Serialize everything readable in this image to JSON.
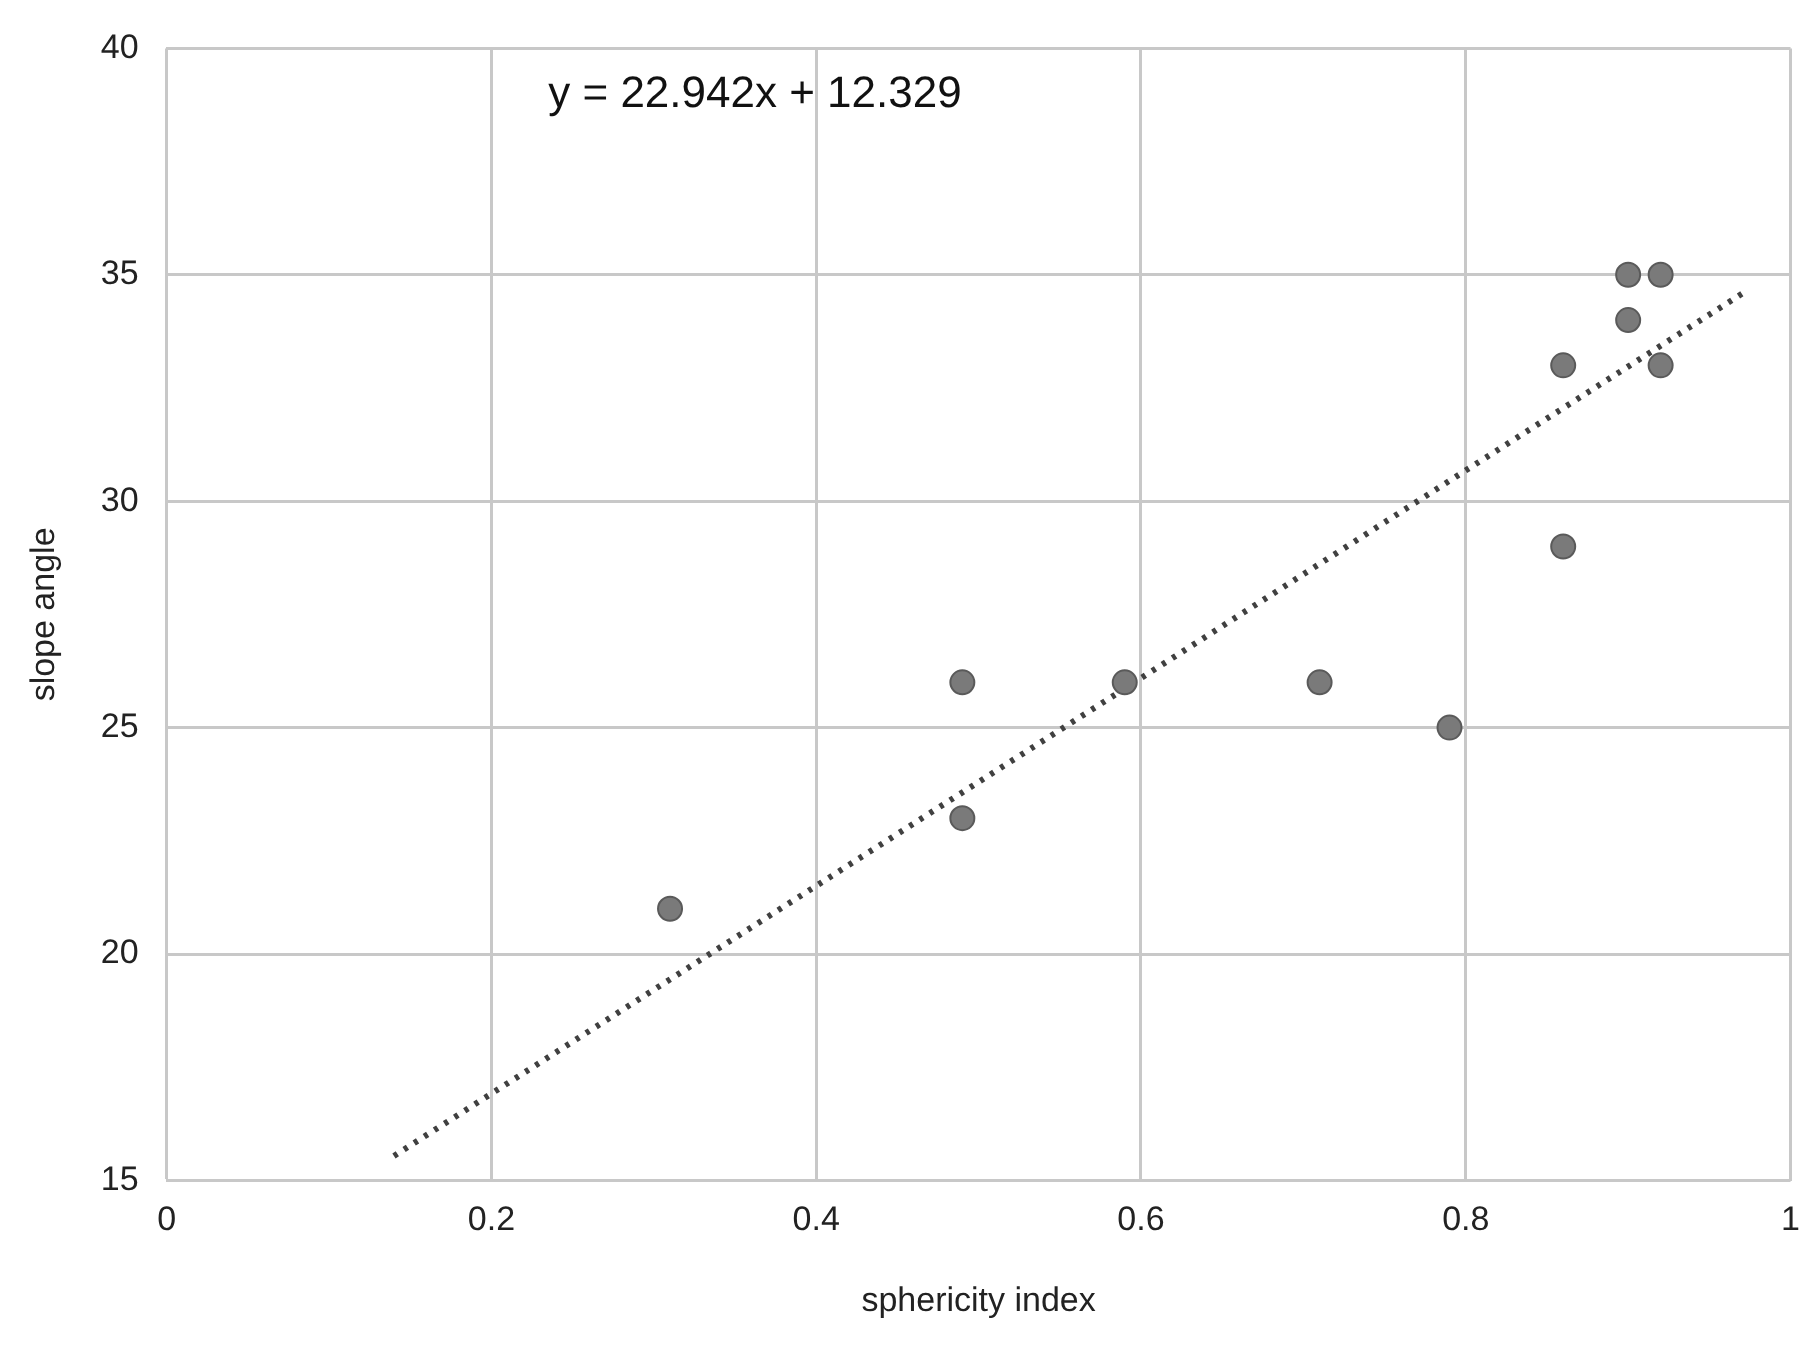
{
  "chart_data": {
    "type": "scatter",
    "xlabel": "sphericity index",
    "ylabel": "slope angle",
    "annotations": [
      "y = 22.942x + 12.329"
    ],
    "xlim": [
      0,
      1
    ],
    "xticks": [
      0,
      0.2,
      0.4,
      0.6,
      0.8,
      1
    ],
    "ylim": [
      15,
      40
    ],
    "yticks": [
      15,
      20,
      25,
      30,
      35,
      40
    ],
    "grid": true,
    "marker": "circle",
    "series": [
      {
        "color": "#7a7a7a",
        "x": [
          0.31,
          0.49,
          0.49,
          0.59,
          0.71,
          0.79,
          0.86,
          0.86,
          0.9,
          0.9,
          0.92,
          0.92
        ],
        "values": [
          21,
          26,
          23,
          26,
          26,
          25,
          33,
          29,
          35,
          34,
          35,
          33
        ]
      },
      {
        "type": "line",
        "color": "#404040",
        "line_style": "dotted",
        "marker": "none",
        "x": [
          0.14,
          0.97
        ],
        "values": [
          15.54,
          34.58
        ]
      }
    ]
  }
}
